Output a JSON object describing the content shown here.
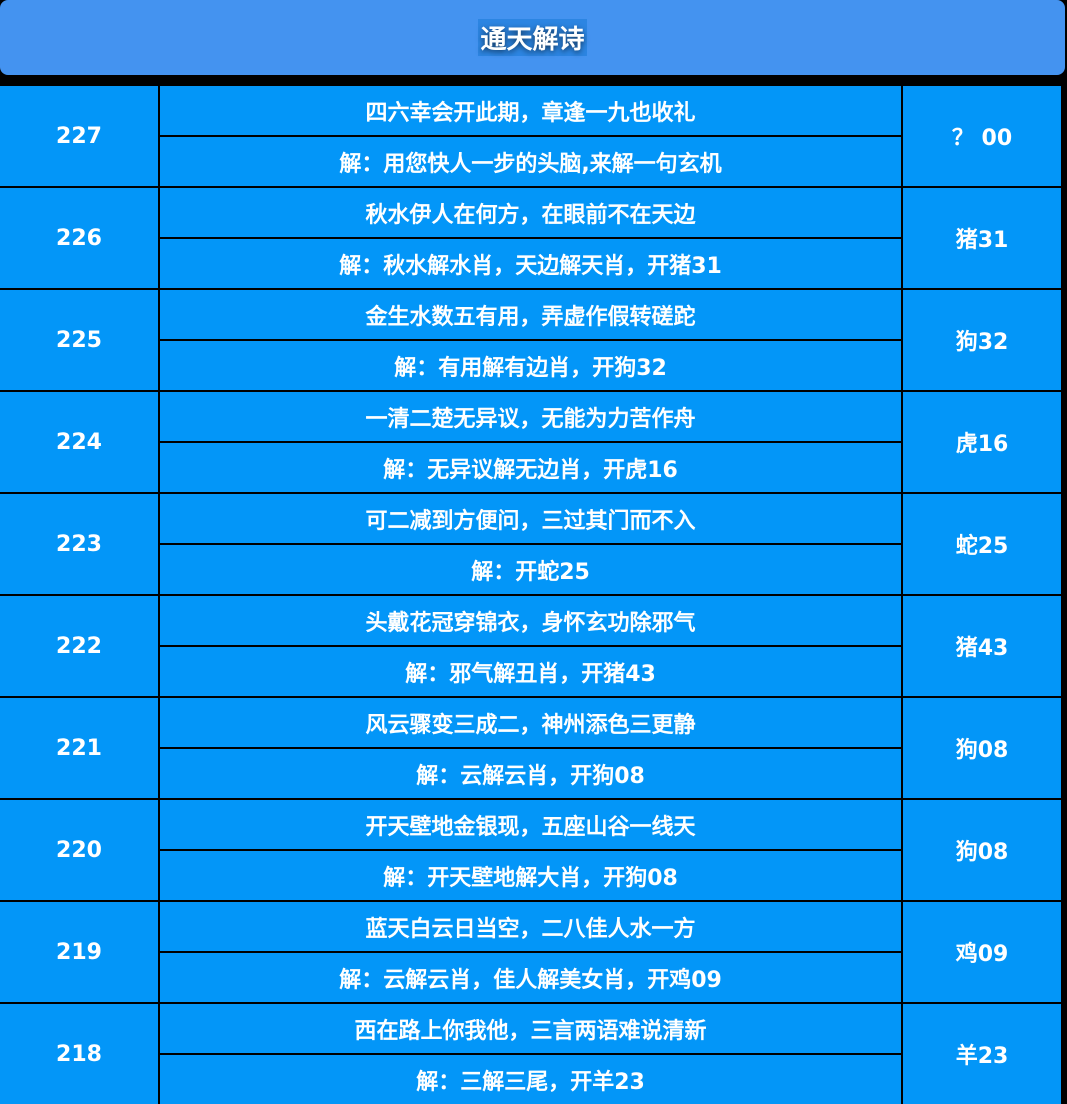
{
  "header": {
    "title": "通天解诗"
  },
  "colors": {
    "header_bg": "#4493f0",
    "cell_bg": "#0396f8",
    "border": "#000000",
    "text": "#ffffff"
  },
  "rows": [
    {
      "period": "227",
      "poem": "四六幸会开此期，章逢一九也收礼",
      "explain": "解：用您快人一步的头脑,来解一句玄机",
      "result": "？ 00"
    },
    {
      "period": "226",
      "poem": "秋水伊人在何方，在眼前不在天边",
      "explain": "解：秋水解水肖，天边解天肖，开猪31",
      "result": "猪31"
    },
    {
      "period": "225",
      "poem": "金生水数五有用，弄虚作假转磋跎",
      "explain": "解：有用解有边肖，开狗32",
      "result": "狗32"
    },
    {
      "period": "224",
      "poem": "一清二楚无异议，无能为力苦作舟",
      "explain": "解：无异议解无边肖，开虎16",
      "result": "虎16"
    },
    {
      "period": "223",
      "poem": "可二减到方便问，三过其门而不入",
      "explain": "解：开蛇25",
      "result": "蛇25"
    },
    {
      "period": "222",
      "poem": "头戴花冠穿锦衣，身怀玄功除邪气",
      "explain": "解：邪气解丑肖，开猪43",
      "result": "猪43"
    },
    {
      "period": "221",
      "poem": "风云骤变三成二，神州添色三更静",
      "explain": "解：云解云肖，开狗08",
      "result": "狗08"
    },
    {
      "period": "220",
      "poem": "开天壁地金银现，五座山谷一线天",
      "explain": "解：开天壁地解大肖，开狗08",
      "result": "狗08"
    },
    {
      "period": "219",
      "poem": "蓝天白云日当空，二八佳人水一方",
      "explain": "解：云解云肖，佳人解美女肖，开鸡09",
      "result": "鸡09"
    },
    {
      "period": "218",
      "poem": "西在路上你我他，三言两语难说清新",
      "explain": "解：三解三尾，开羊23",
      "result": "羊23"
    }
  ]
}
